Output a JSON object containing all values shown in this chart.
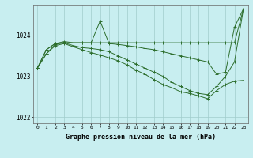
{
  "bg_color": "#c8eef0",
  "grid_color": "#a0cccc",
  "line_color": "#2d6e2d",
  "xlabel": "Graphe pression niveau de la mer (hPa)",
  "ylim": [
    1021.85,
    1024.75
  ],
  "xlim": [
    -0.5,
    23.5
  ],
  "yticks": [
    1022,
    1023,
    1024
  ],
  "xticks": [
    0,
    1,
    2,
    3,
    4,
    5,
    6,
    7,
    8,
    9,
    10,
    11,
    12,
    13,
    14,
    15,
    16,
    17,
    18,
    19,
    20,
    21,
    22,
    23
  ],
  "series": [
    [
      1023.2,
      1023.65,
      1023.8,
      1023.85,
      1023.82,
      1023.82,
      1023.82,
      1023.82,
      1023.82,
      1023.82,
      1023.82,
      1023.82,
      1023.82,
      1023.82,
      1023.82,
      1023.82,
      1023.82,
      1023.82,
      1023.82,
      1023.82,
      1023.82,
      1023.82,
      1023.82,
      1024.65
    ],
    [
      1023.2,
      1023.65,
      1023.8,
      1023.82,
      1023.82,
      1023.82,
      1023.82,
      1024.35,
      1023.8,
      1023.78,
      1023.75,
      1023.72,
      1023.68,
      1023.65,
      1023.6,
      1023.55,
      1023.5,
      1023.45,
      1023.4,
      1023.35,
      1023.05,
      1023.1,
      1024.2,
      1024.65
    ],
    [
      1023.2,
      1023.55,
      1023.78,
      1023.82,
      1023.75,
      1023.7,
      1023.68,
      1023.65,
      1023.6,
      1023.5,
      1023.4,
      1023.3,
      1023.2,
      1023.1,
      1023.0,
      1022.85,
      1022.75,
      1022.65,
      1022.58,
      1022.55,
      1022.75,
      1023.0,
      1023.35,
      1024.65
    ],
    [
      1023.2,
      1023.55,
      1023.75,
      1023.8,
      1023.72,
      1023.65,
      1023.58,
      1023.52,
      1023.45,
      1023.38,
      1023.28,
      1023.15,
      1023.05,
      1022.92,
      1022.8,
      1022.72,
      1022.62,
      1022.58,
      1022.52,
      1022.45,
      1022.65,
      1022.8,
      1022.88,
      1022.9
    ]
  ]
}
